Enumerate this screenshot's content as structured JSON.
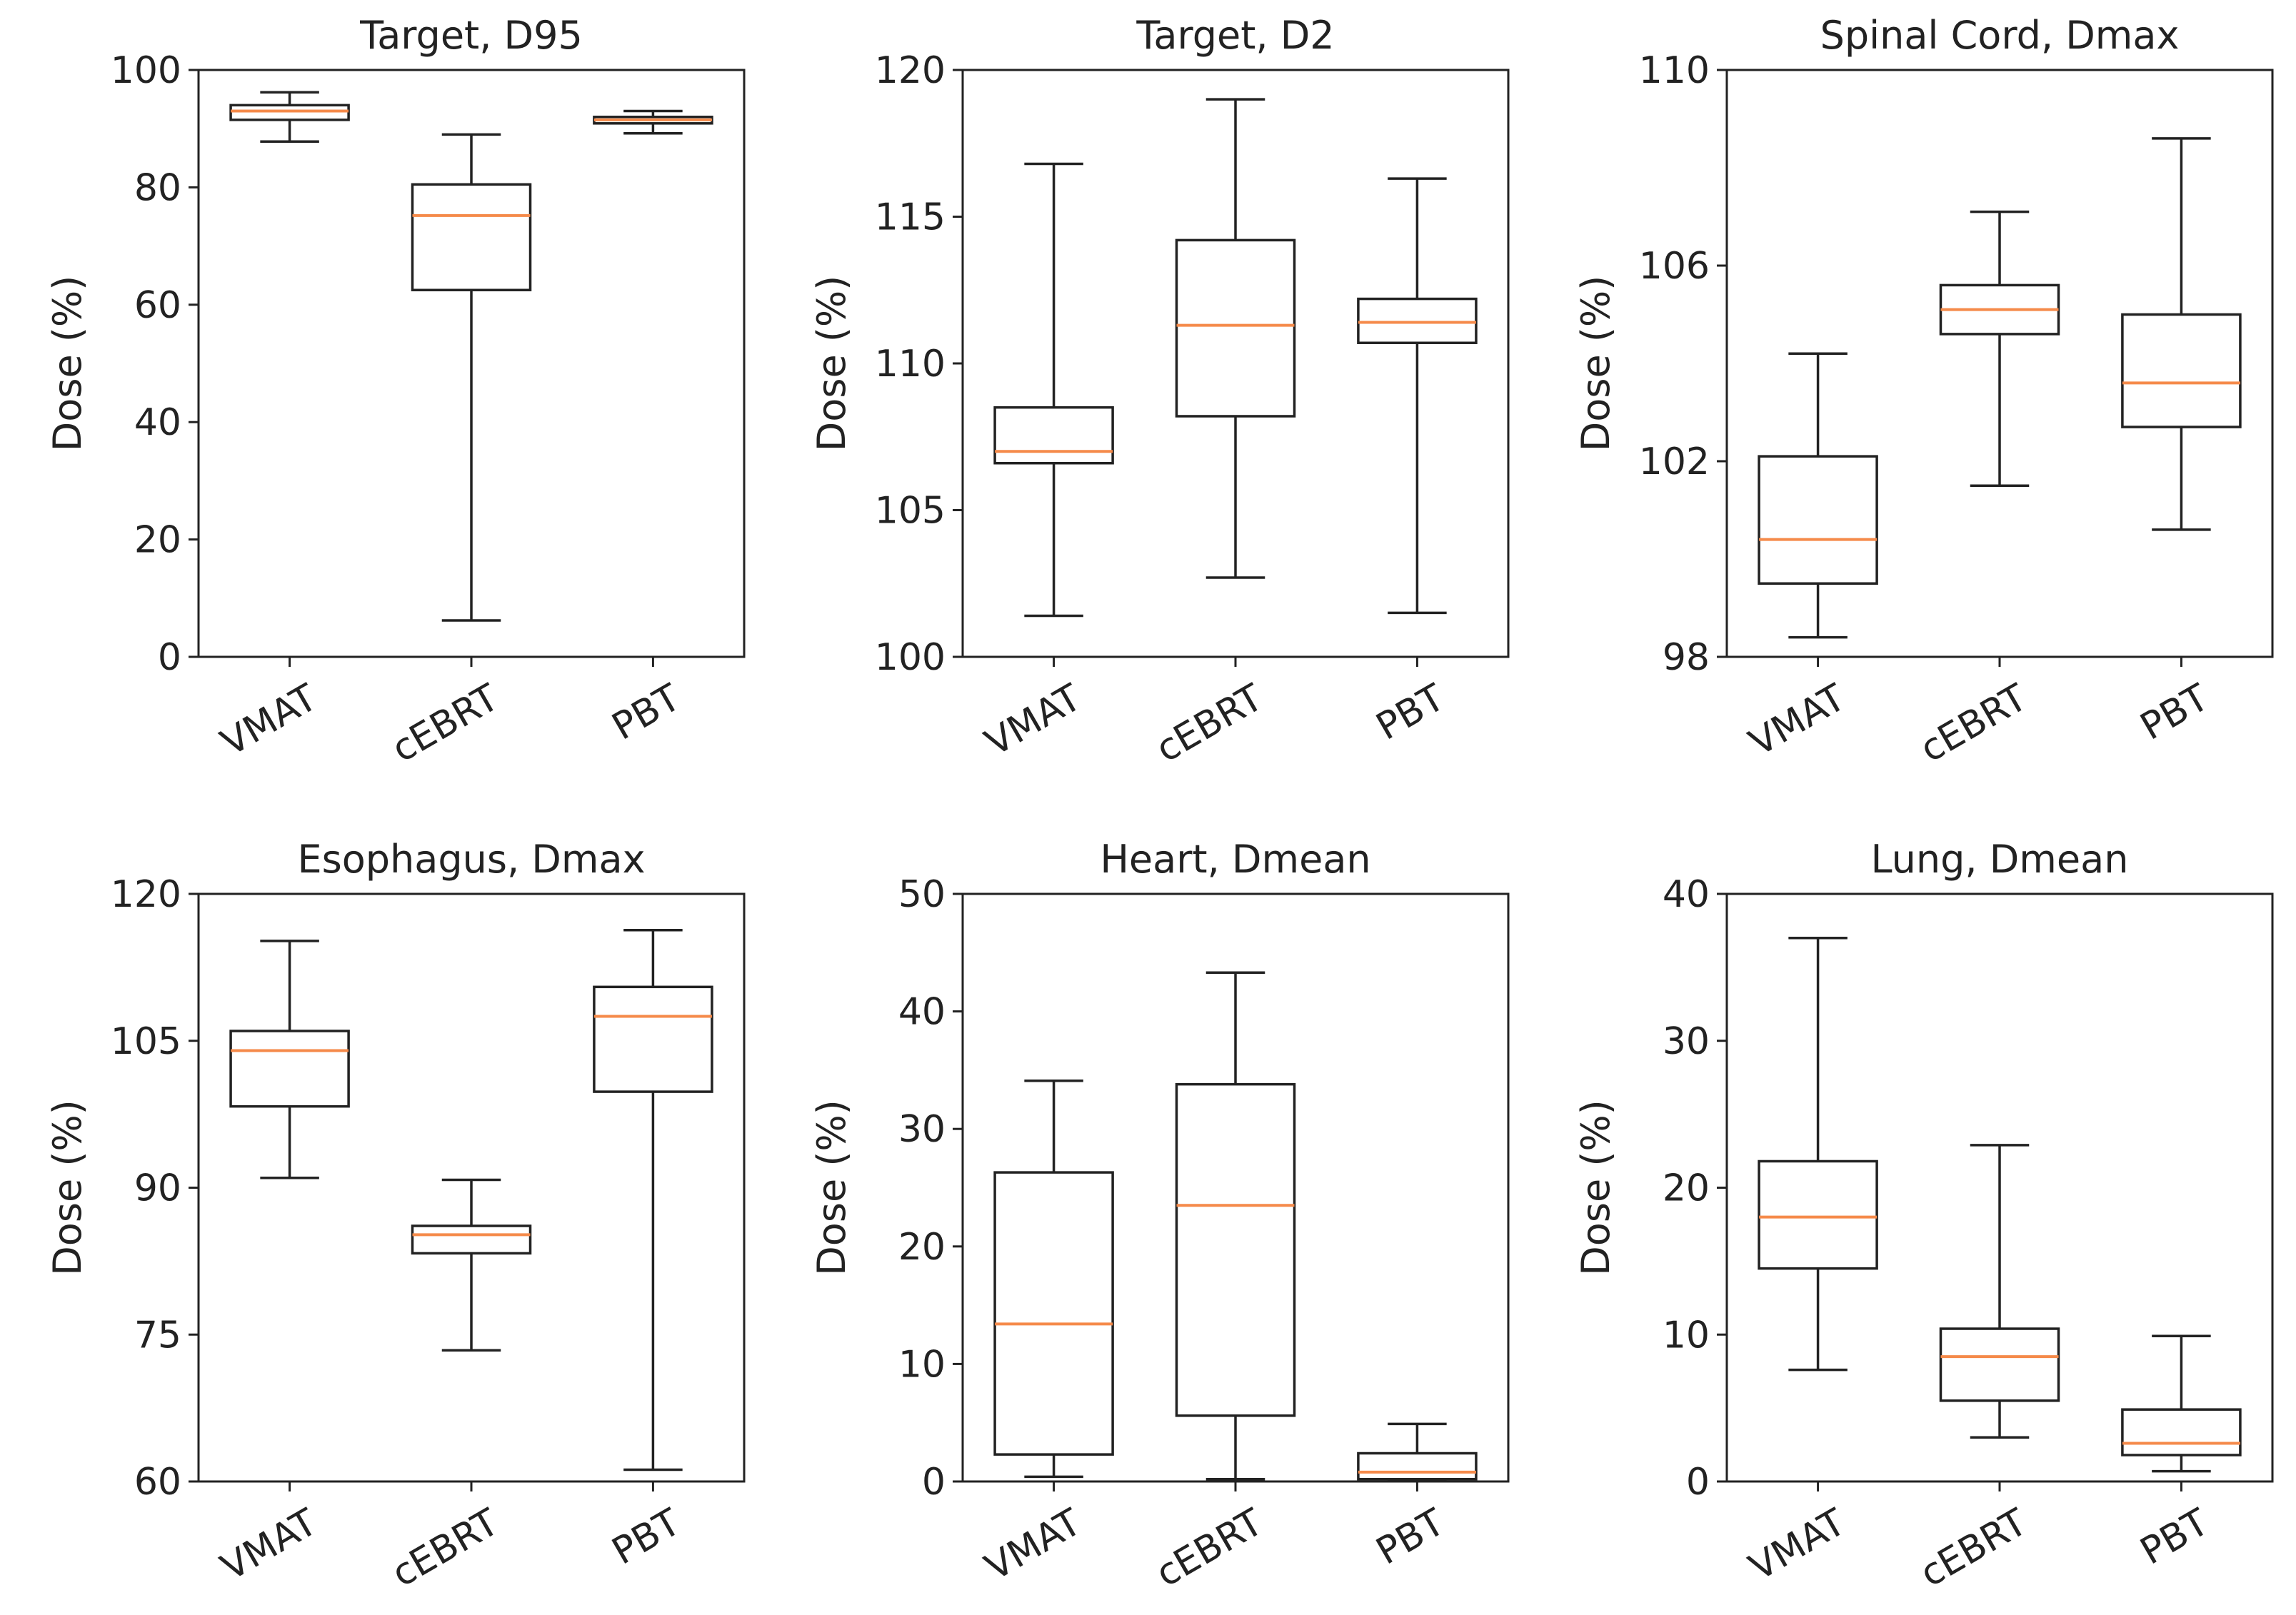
{
  "colors": {
    "median": "#f58a4a",
    "axis": "#222222",
    "background": "#ffffff"
  },
  "chart_data": [
    {
      "type": "boxplot",
      "title": "Target, D95",
      "ylabel": "Dose (%)",
      "ylim": [
        0,
        100
      ],
      "yticks": [
        0,
        20,
        40,
        60,
        80,
        100
      ],
      "categories": [
        "VMAT",
        "cEBRT",
        "PBT"
      ],
      "boxes": [
        {
          "whislo": 87.8,
          "q1": 91.5,
          "med": 93.0,
          "q3": 94.0,
          "whishi": 96.2
        },
        {
          "whislo": 6.2,
          "q1": 62.5,
          "med": 75.2,
          "q3": 80.5,
          "whishi": 89.0
        },
        {
          "whislo": 89.2,
          "q1": 90.9,
          "med": 91.5,
          "q3": 92.0,
          "whishi": 93.0
        }
      ]
    },
    {
      "type": "boxplot",
      "title": "Target, D2",
      "ylabel": "Dose (%)",
      "ylim": [
        100,
        120
      ],
      "yticks": [
        100,
        105,
        110,
        115,
        120
      ],
      "categories": [
        "VMAT",
        "cEBRT",
        "PBT"
      ],
      "boxes": [
        {
          "whislo": 101.4,
          "q1": 106.6,
          "med": 107.0,
          "q3": 108.5,
          "whishi": 116.8
        },
        {
          "whislo": 102.7,
          "q1": 108.2,
          "med": 111.3,
          "q3": 114.2,
          "whishi": 119.0
        },
        {
          "whislo": 101.5,
          "q1": 110.7,
          "med": 111.4,
          "q3": 112.2,
          "whishi": 116.3
        }
      ]
    },
    {
      "type": "boxplot",
      "title": "Spinal Cord, Dmax",
      "ylabel": "Dose (%)",
      "ylim": [
        98,
        110
      ],
      "yticks": [
        98,
        102,
        106,
        110
      ],
      "categories": [
        "VMAT",
        "cEBRT",
        "PBT"
      ],
      "boxes": [
        {
          "whislo": 98.4,
          "q1": 99.5,
          "med": 100.4,
          "q3": 102.1,
          "whishi": 104.2
        },
        {
          "whislo": 101.5,
          "q1": 104.6,
          "med": 105.1,
          "q3": 105.6,
          "whishi": 107.1
        },
        {
          "whislo": 100.6,
          "q1": 102.7,
          "med": 103.6,
          "q3": 105.0,
          "whishi": 108.6
        }
      ]
    },
    {
      "type": "boxplot",
      "title": "Esophagus, Dmax",
      "ylabel": "Dose (%)",
      "ylim": [
        60,
        120
      ],
      "yticks": [
        60,
        75,
        90,
        105,
        120
      ],
      "categories": [
        "VMAT",
        "cEBRT",
        "PBT"
      ],
      "boxes": [
        {
          "whislo": 91.0,
          "q1": 98.3,
          "med": 104.0,
          "q3": 106.0,
          "whishi": 115.2
        },
        {
          "whislo": 73.4,
          "q1": 83.3,
          "med": 85.2,
          "q3": 86.1,
          "whishi": 90.8
        },
        {
          "whislo": 61.2,
          "q1": 99.8,
          "med": 107.5,
          "q3": 110.5,
          "whishi": 116.3
        }
      ]
    },
    {
      "type": "boxplot",
      "title": "Heart, Dmean",
      "ylabel": "Dose (%)",
      "ylim": [
        0,
        50
      ],
      "yticks": [
        0,
        10,
        20,
        30,
        40,
        50
      ],
      "categories": [
        "VMAT",
        "cEBRT",
        "PBT"
      ],
      "boxes": [
        {
          "whislo": 0.4,
          "q1": 2.3,
          "med": 13.4,
          "q3": 26.3,
          "whishi": 34.1
        },
        {
          "whislo": 0.2,
          "q1": 5.6,
          "med": 23.5,
          "q3": 33.8,
          "whishi": 43.3
        },
        {
          "whislo": 0.1,
          "q1": 0.2,
          "med": 0.8,
          "q3": 2.4,
          "whishi": 4.9
        }
      ]
    },
    {
      "type": "boxplot",
      "title": "Lung, Dmean",
      "ylabel": "Dose (%)",
      "ylim": [
        0,
        40
      ],
      "yticks": [
        0,
        10,
        20,
        30,
        40
      ],
      "categories": [
        "VMAT",
        "cEBRT",
        "PBT"
      ],
      "boxes": [
        {
          "whislo": 7.6,
          "q1": 14.5,
          "med": 18.0,
          "q3": 21.8,
          "whishi": 37.0
        },
        {
          "whislo": 3.0,
          "q1": 5.5,
          "med": 8.5,
          "q3": 10.4,
          "whishi": 22.9
        },
        {
          "whislo": 0.7,
          "q1": 1.8,
          "med": 2.6,
          "q3": 4.9,
          "whishi": 9.9
        }
      ]
    }
  ]
}
